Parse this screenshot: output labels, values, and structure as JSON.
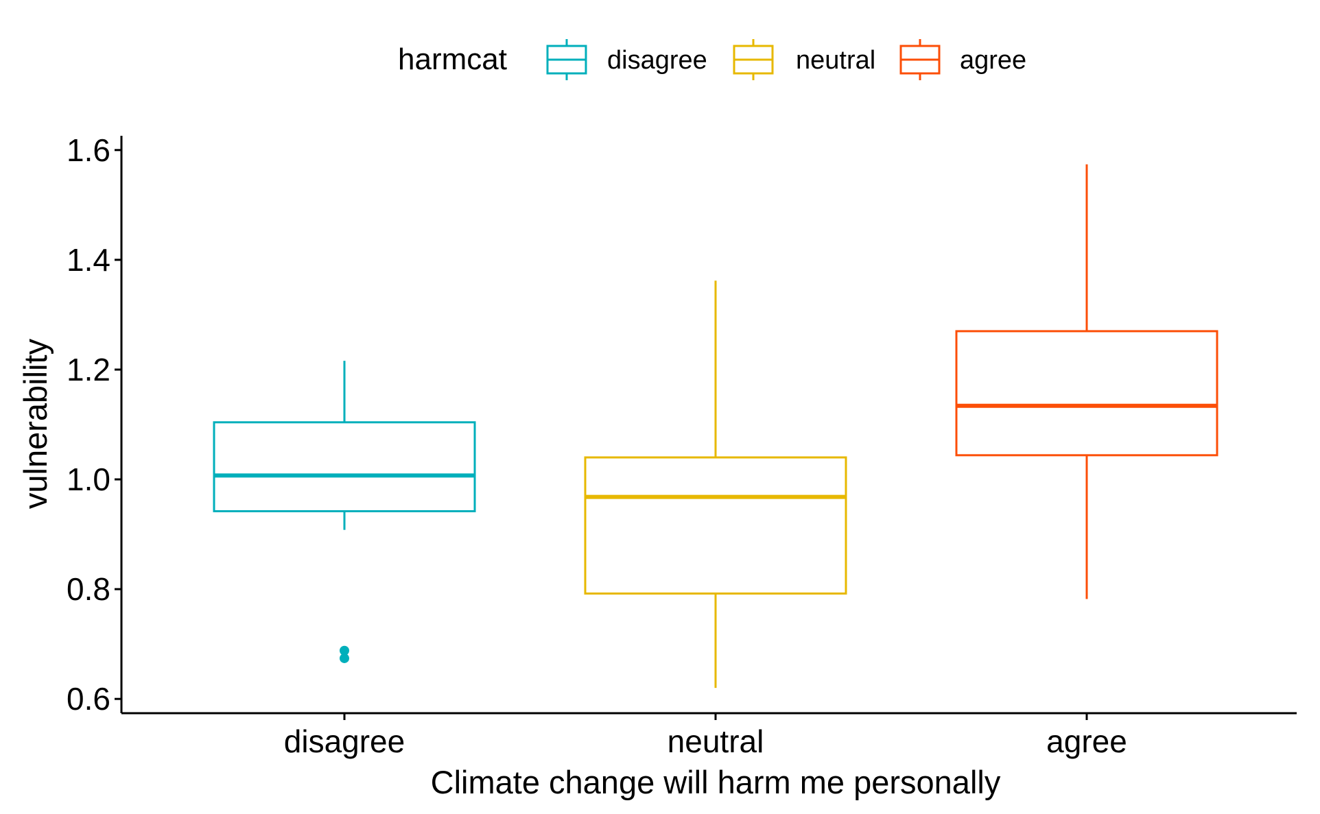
{
  "chart_data": {
    "type": "boxplot",
    "xlabel": "Climate change will harm me personally",
    "ylabel": "vulnerability",
    "ylim": [
      0.574,
      1.626
    ],
    "yticks": [
      0.6,
      0.8,
      1.0,
      1.2,
      1.4,
      1.6
    ],
    "ytick_labels": [
      "0.6",
      "0.8",
      "1.0",
      "1.2",
      "1.4",
      "1.6"
    ],
    "categories": [
      "disagree",
      "neutral",
      "agree"
    ],
    "legend": {
      "title": "harmcat",
      "position": "top",
      "items": [
        "disagree",
        "neutral",
        "agree"
      ]
    },
    "grid": false,
    "series": [
      {
        "name": "disagree",
        "color": "#00AFBB",
        "whisker_low": 0.908,
        "q1": 0.942,
        "median": 1.007,
        "q3": 1.104,
        "whisker_high": 1.216,
        "outliers": [
          0.688,
          0.674
        ]
      },
      {
        "name": "neutral",
        "color": "#E7B800",
        "whisker_low": 0.62,
        "q1": 0.792,
        "median": 0.968,
        "q3": 1.04,
        "whisker_high": 1.362,
        "outliers": []
      },
      {
        "name": "agree",
        "color": "#FC4E07",
        "whisker_low": 0.782,
        "q1": 1.044,
        "median": 1.134,
        "q3": 1.27,
        "whisker_high": 1.574,
        "outliers": []
      }
    ]
  }
}
